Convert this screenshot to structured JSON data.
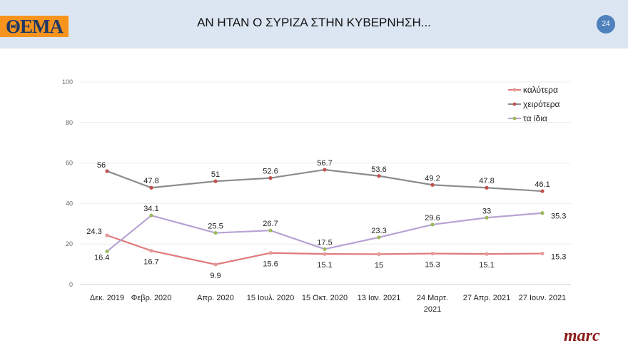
{
  "header": {
    "logo": "ΘΕΜΑ",
    "title": "ΑΝ ΗΤΑΝ Ο ΣΥΡΙΖΑ ΣΤΗΝ ΚΥΒΕΡΝΗΣΗ...",
    "page_number": "24"
  },
  "brand": "marc",
  "chart_data": {
    "type": "line",
    "categories": [
      [
        "Δεκ. 2019"
      ],
      [
        "Φεβρ. 2020"
      ],
      [
        "Απρ. 2020"
      ],
      [
        "15 Ιουλ. 2020"
      ],
      [
        "15 Οκτ. 2020"
      ],
      [
        "13 Ιαν. 2021"
      ],
      [
        "24 Μαρτ.",
        "2021"
      ],
      [
        "27 Απρ. 2021"
      ],
      [
        "27 Ιουν. 2021"
      ]
    ],
    "ylim": [
      0,
      100
    ],
    "yticks": [
      0,
      20,
      40,
      60,
      80,
      100
    ],
    "grid": true,
    "legend": "top-right",
    "series": [
      {
        "name": "καλύτερα",
        "values": [
          24.3,
          16.7,
          9.9,
          15.6,
          15.1,
          15,
          15.3,
          15.1,
          15.3
        ],
        "color": "#e07a7a",
        "marker": "#e39a9a"
      },
      {
        "name": "χειρότερα",
        "values": [
          56,
          47.8,
          51,
          52.6,
          56.7,
          53.6,
          49.2,
          47.8,
          46.1
        ],
        "color": "#8c8c8c",
        "marker": "#c0504d"
      },
      {
        "name": "τα ίδια",
        "values": [
          16.4,
          34.1,
          25.5,
          26.7,
          17.5,
          23.3,
          29.6,
          33,
          35.3
        ],
        "color": "#b7a3d3",
        "marker": "#9bbb59"
      }
    ]
  }
}
